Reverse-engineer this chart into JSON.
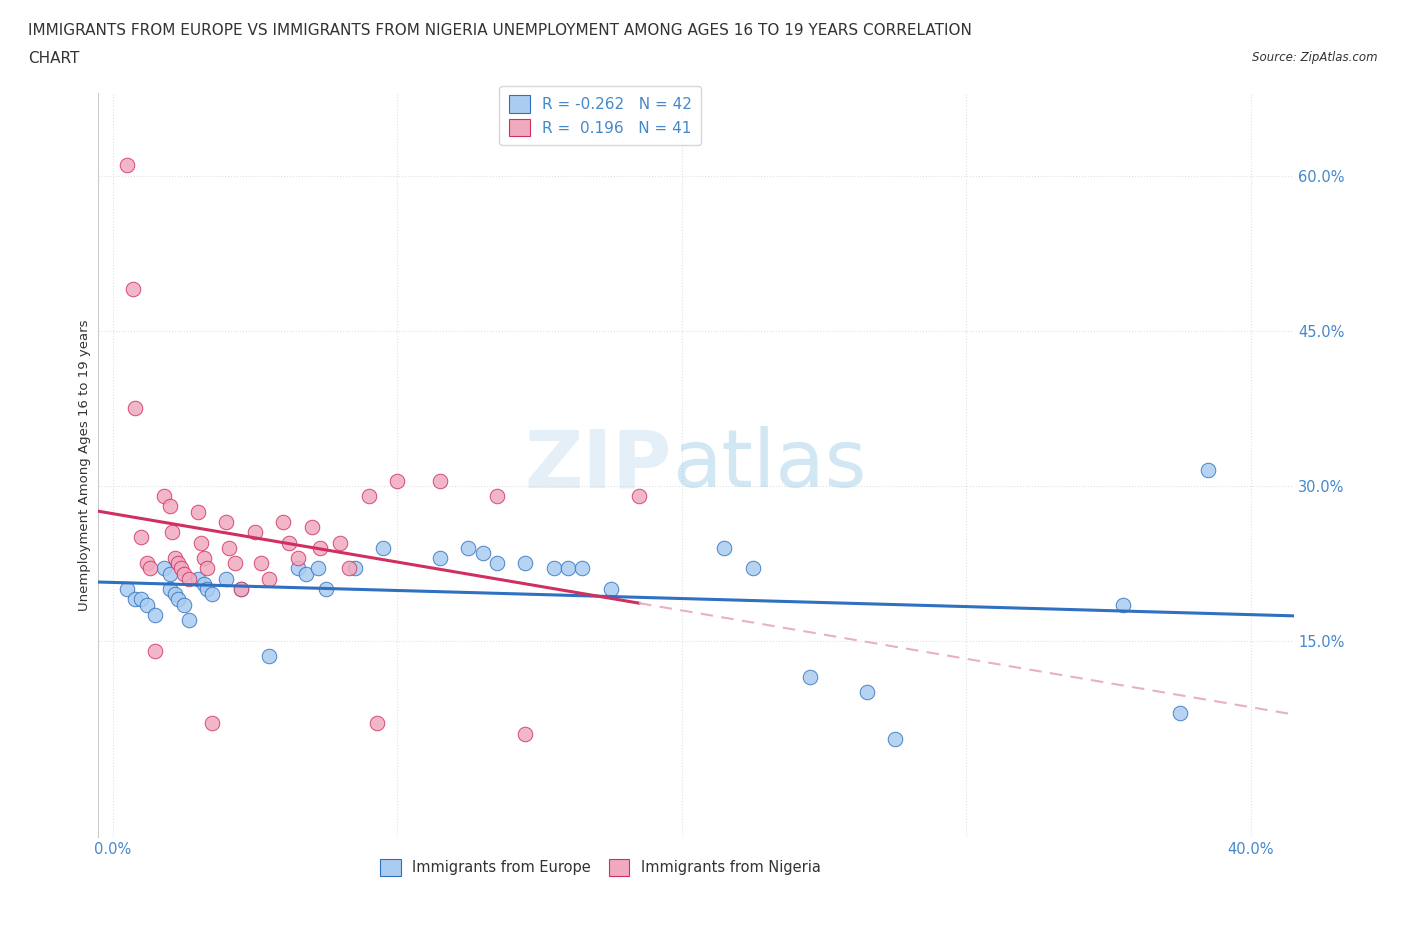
{
  "title_line1": "IMMIGRANTS FROM EUROPE VS IMMIGRANTS FROM NIGERIA UNEMPLOYMENT AMONG AGES 16 TO 19 YEARS CORRELATION",
  "title_line2": "CHART",
  "source": "Source: ZipAtlas.com",
  "ylabel": "Unemployment Among Ages 16 to 19 years",
  "xlim": [
    -0.005,
    0.415
  ],
  "ylim": [
    -0.04,
    0.68
  ],
  "ytick_values": [
    0.15,
    0.3,
    0.45,
    0.6
  ],
  "ytick_labels": [
    "15.0%",
    "30.0%",
    "45.0%",
    "60.0%"
  ],
  "xtick_positions": [
    0.0,
    0.1,
    0.2,
    0.3,
    0.4
  ],
  "xtick_labels": [
    "0.0%",
    "",
    "",
    "",
    "40.0%"
  ],
  "legend_europe": "R = -0.262   N = 42",
  "legend_nigeria": "R =  0.196   N = 41",
  "color_europe": "#aaccf0",
  "color_nigeria": "#f0aac0",
  "line_color_europe": "#3070c0",
  "line_color_nigeria": "#d03060",
  "line_color_nigeria_dashed": "#e8b0c0",
  "europe_x": [
    0.005,
    0.008,
    0.01,
    0.012,
    0.015,
    0.018,
    0.02,
    0.02,
    0.022,
    0.023,
    0.025,
    0.027,
    0.03,
    0.032,
    0.033,
    0.035,
    0.04,
    0.045,
    0.055,
    0.065,
    0.068,
    0.072,
    0.075,
    0.085,
    0.095,
    0.115,
    0.125,
    0.13,
    0.135,
    0.145,
    0.155,
    0.16,
    0.165,
    0.175,
    0.215,
    0.225,
    0.245,
    0.265,
    0.275,
    0.355,
    0.375,
    0.385
  ],
  "europe_y": [
    0.2,
    0.19,
    0.19,
    0.185,
    0.175,
    0.22,
    0.215,
    0.2,
    0.195,
    0.19,
    0.185,
    0.17,
    0.21,
    0.205,
    0.2,
    0.195,
    0.21,
    0.2,
    0.135,
    0.22,
    0.215,
    0.22,
    0.2,
    0.22,
    0.24,
    0.23,
    0.24,
    0.235,
    0.225,
    0.225,
    0.22,
    0.22,
    0.22,
    0.2,
    0.24,
    0.22,
    0.115,
    0.1,
    0.055,
    0.185,
    0.08,
    0.315
  ],
  "nigeria_x": [
    0.005,
    0.007,
    0.008,
    0.01,
    0.012,
    0.013,
    0.015,
    0.018,
    0.02,
    0.021,
    0.022,
    0.023,
    0.024,
    0.025,
    0.027,
    0.03,
    0.031,
    0.032,
    0.033,
    0.035,
    0.04,
    0.041,
    0.043,
    0.045,
    0.05,
    0.052,
    0.055,
    0.06,
    0.062,
    0.065,
    0.07,
    0.073,
    0.08,
    0.083,
    0.09,
    0.093,
    0.1,
    0.115,
    0.135,
    0.145,
    0.185
  ],
  "nigeria_y": [
    0.61,
    0.49,
    0.375,
    0.25,
    0.225,
    0.22,
    0.14,
    0.29,
    0.28,
    0.255,
    0.23,
    0.225,
    0.22,
    0.215,
    0.21,
    0.275,
    0.245,
    0.23,
    0.22,
    0.07,
    0.265,
    0.24,
    0.225,
    0.2,
    0.255,
    0.225,
    0.21,
    0.265,
    0.245,
    0.23,
    0.26,
    0.24,
    0.245,
    0.22,
    0.29,
    0.07,
    0.305,
    0.305,
    0.29,
    0.06,
    0.29
  ],
  "bg_color": "#ffffff",
  "grid_color": "#e0e0e0",
  "axis_label_color": "#4488cc",
  "title_color": "#333333",
  "title_fontsize": 11.0,
  "label_fontsize": 9.5,
  "tick_fontsize": 10.5,
  "marker_size": 110,
  "marker_lw": 0.7
}
